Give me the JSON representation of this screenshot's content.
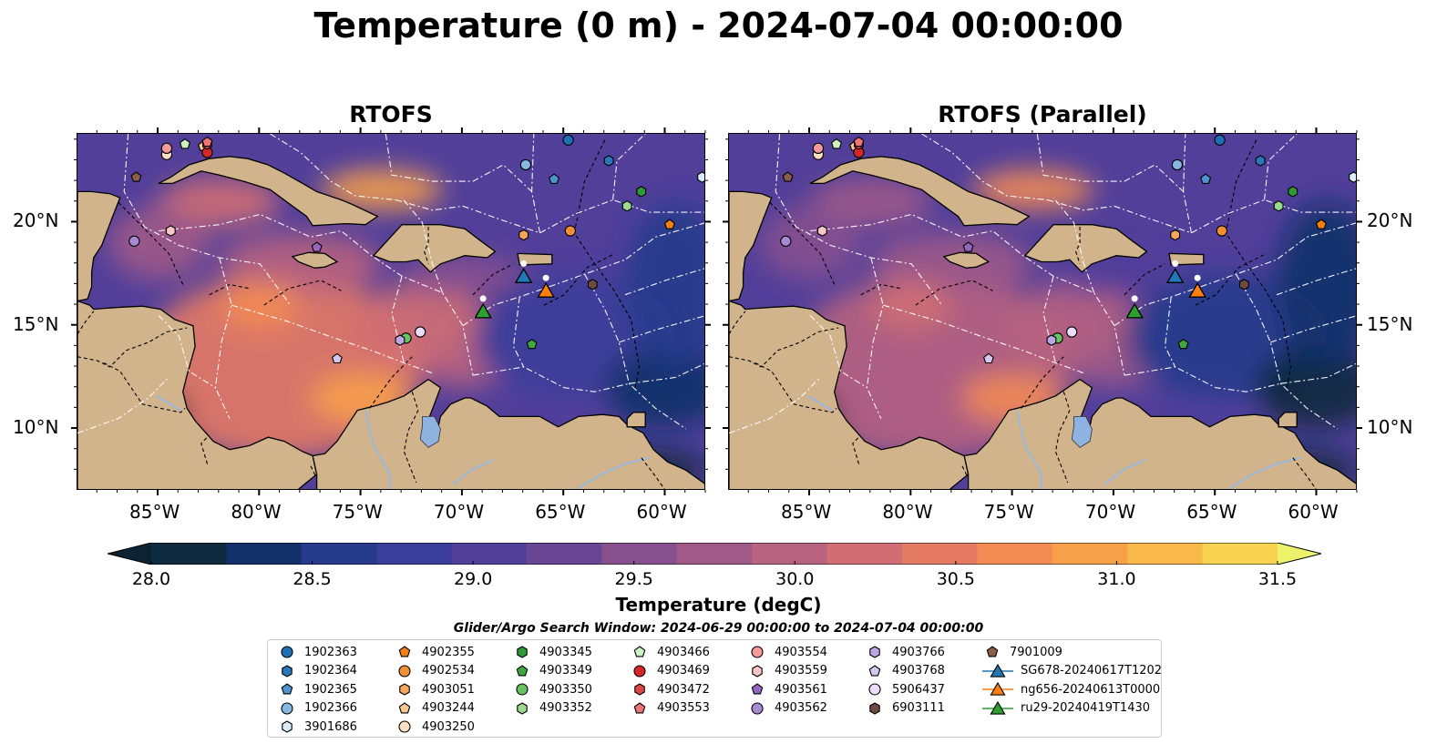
{
  "title": "Temperature (0 m) - 2024-07-04 00:00:00",
  "panels": [
    {
      "title": "RTOFS"
    },
    {
      "title": "RTOFS (Parallel)"
    }
  ],
  "map": {
    "lon_range": [
      -89,
      -58
    ],
    "lat_range": [
      7,
      24.3
    ],
    "lon_ticks": [
      {
        "value": -85,
        "label": "85°W"
      },
      {
        "value": -80,
        "label": "80°W"
      },
      {
        "value": -75,
        "label": "75°W"
      },
      {
        "value": -70,
        "label": "70°W"
      },
      {
        "value": -65,
        "label": "65°W"
      },
      {
        "value": -60,
        "label": "60°W"
      }
    ],
    "lat_ticks": [
      {
        "value": 20,
        "label": "20°N"
      },
      {
        "value": 15,
        "label": "15°N"
      },
      {
        "value": 10,
        "label": "10°N"
      }
    ],
    "colors": {
      "land": "#d2b48c",
      "ocean_deep": "#0b2a3c",
      "lake": "#8fb3e0",
      "river": "#9ab8dd",
      "eez_line": "#ffffff",
      "border_line": "#000000"
    }
  },
  "colorbar": {
    "label": "Temperature (degC)",
    "min": 28.0,
    "max": 31.5,
    "ticks": [
      {
        "value": 28.0,
        "label": "28.0"
      },
      {
        "value": 28.5,
        "label": "28.5"
      },
      {
        "value": 29.0,
        "label": "29.0"
      },
      {
        "value": 29.5,
        "label": "29.5"
      },
      {
        "value": 30.0,
        "label": "30.0"
      },
      {
        "value": 30.5,
        "label": "30.5"
      },
      {
        "value": 31.0,
        "label": "31.0"
      },
      {
        "value": 31.5,
        "label": "31.5"
      }
    ],
    "bins": [
      "#0d2a3e",
      "#12306a",
      "#263a8c",
      "#3b3d9a",
      "#513f9a",
      "#6a4594",
      "#86508f",
      "#9f5a88",
      "#b86380",
      "#d06e74",
      "#e57a64",
      "#f28b54",
      "#f7a04a",
      "#f8b84a",
      "#f6d250"
    ],
    "under_color": "#0b2332",
    "over_color": "#eef26a"
  },
  "search_window": "Glider/Argo Search Window: 2024-06-29 00:00:00 to 2024-07-04 00:00:00",
  "platforms": [
    {
      "id": "1902363",
      "marker": "circle",
      "color": "#1f6fb4",
      "lon": -64.8,
      "lat": 24.0
    },
    {
      "id": "1902364",
      "marker": "hexagon",
      "color": "#2b78b8",
      "lon": -62.8,
      "lat": 23.0
    },
    {
      "id": "1902365",
      "marker": "pentagon",
      "color": "#4f93cf",
      "lon": -65.5,
      "lat": 22.1
    },
    {
      "id": "1902366",
      "marker": "circle",
      "color": "#86b8e2",
      "lon": -66.9,
      "lat": 22.8
    },
    {
      "id": "3901686",
      "marker": "hexagon",
      "color": "#d9ecfb",
      "lon": -58.2,
      "lat": 22.2
    },
    {
      "id": "4902355",
      "marker": "pentagon",
      "color": "#f07f14",
      "lon": -59.8,
      "lat": 19.9
    },
    {
      "id": "4902534",
      "marker": "circle",
      "color": "#f28e33",
      "lon": -64.7,
      "lat": 19.6
    },
    {
      "id": "4903051",
      "marker": "hexagon",
      "color": "#f5a65b",
      "lon": -67.0,
      "lat": 19.4
    },
    {
      "id": "4903244",
      "marker": "pentagon",
      "color": "#f9c794",
      "lon": -82.8,
      "lat": 23.7
    },
    {
      "id": "4903250",
      "marker": "circle",
      "color": "#fde0c2",
      "lon": -84.6,
      "lat": 23.3
    },
    {
      "id": "4903345",
      "marker": "hexagon",
      "color": "#2f9a35",
      "lon": -61.2,
      "lat": 21.5
    },
    {
      "id": "4903349",
      "marker": "pentagon",
      "color": "#40a640",
      "lon": -66.6,
      "lat": 14.1
    },
    {
      "id": "4903350",
      "marker": "circle",
      "color": "#66c35f",
      "lon": -72.8,
      "lat": 14.4
    },
    {
      "id": "4903352",
      "marker": "hexagon",
      "color": "#9bd98e",
      "lon": -61.9,
      "lat": 20.8
    },
    {
      "id": "4903466",
      "marker": "pentagon",
      "color": "#cdf2c0",
      "lon": -83.7,
      "lat": 23.8
    },
    {
      "id": "4903469",
      "marker": "circle",
      "color": "#d62728",
      "lon": -82.6,
      "lat": 23.4
    },
    {
      "id": "4903472",
      "marker": "hexagon",
      "color": "#e04545",
      "lon": -82.6,
      "lat": 23.8
    },
    {
      "id": "4903553",
      "marker": "pentagon",
      "color": "#ef7474",
      "lon": -82.6,
      "lat": 23.9
    },
    {
      "id": "4903554",
      "marker": "circle",
      "color": "#f49a9a",
      "lon": -84.6,
      "lat": 23.6
    },
    {
      "id": "4903559",
      "marker": "hexagon",
      "color": "#f9c5c5",
      "lon": -84.4,
      "lat": 19.6
    },
    {
      "id": "4903561",
      "marker": "pentagon",
      "color": "#9467bd",
      "lon": -77.2,
      "lat": 18.8
    },
    {
      "id": "4903562",
      "marker": "circle",
      "color": "#a88ad3",
      "lon": -86.2,
      "lat": 19.1
    },
    {
      "id": "4903766",
      "marker": "hexagon",
      "color": "#bfa6e5",
      "lon": -73.1,
      "lat": 14.3
    },
    {
      "id": "4903768",
      "marker": "pentagon",
      "color": "#d7c6f1",
      "lon": -76.2,
      "lat": 13.4
    },
    {
      "id": "5906437",
      "marker": "circle",
      "color": "#ecdcfb",
      "lon": -72.1,
      "lat": 14.7
    },
    {
      "id": "6903111",
      "marker": "hexagon",
      "color": "#6e4a3f",
      "lon": -63.6,
      "lat": 17.0
    },
    {
      "id": "7901009",
      "marker": "pentagon",
      "color": "#8c5d4b",
      "lon": -86.1,
      "lat": 22.2
    },
    {
      "id": "SG678-20240617T1202",
      "marker": "triangle",
      "color": "#1f77b4",
      "line": true,
      "lon": -67.0,
      "lat": 17.4
    },
    {
      "id": "ng656-20240613T0000",
      "marker": "triangle",
      "color": "#ff7f0e",
      "line": true,
      "lon": -65.9,
      "lat": 16.7
    },
    {
      "id": "ru29-20240419T1430",
      "marker": "triangle",
      "color": "#2ca02c",
      "line": true,
      "lon": -69.0,
      "lat": 15.7
    }
  ]
}
